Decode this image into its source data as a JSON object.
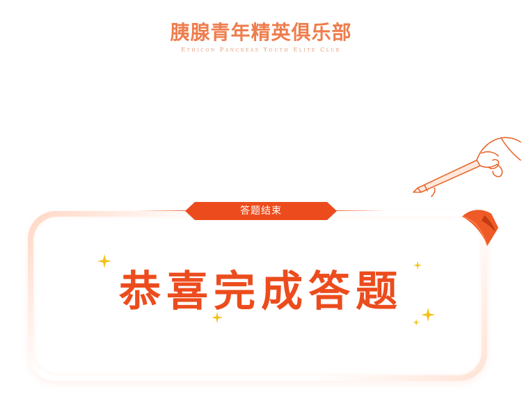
{
  "header": {
    "title_cn": "胰腺青年精英俱乐部",
    "title_en": "Ethicon Pancreas Youth Elite Club"
  },
  "badge": {
    "label": "答题结束"
  },
  "main": {
    "congrats": "恭喜完成答题"
  },
  "icons": {
    "hand": "hand-holding-pencil-icon",
    "flag": "paper-corner-flag-icon",
    "sparkle": "sparkle-star-icon"
  },
  "colors": {
    "accent": "#ec4c1d",
    "title": "#ee7d4d",
    "sparkle": "#f4c21a"
  }
}
